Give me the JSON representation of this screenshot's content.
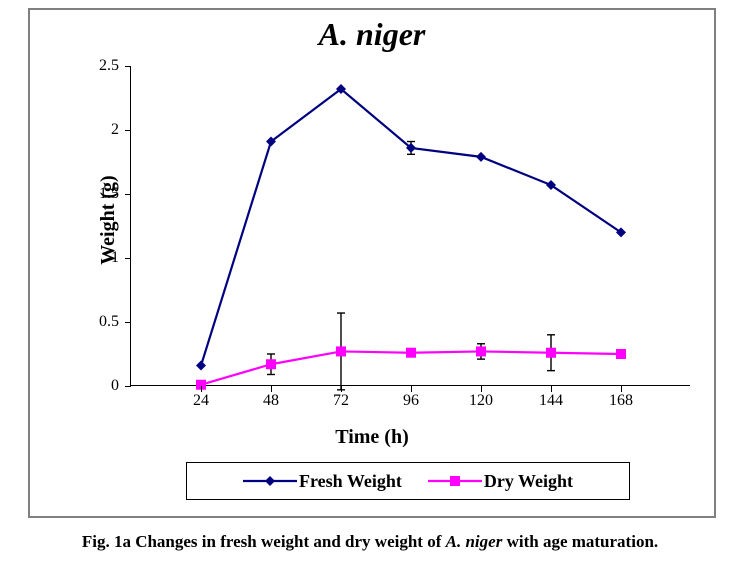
{
  "chart": {
    "type": "line",
    "title": "A. niger",
    "title_fontsize": 32,
    "title_fontstyle": "italic",
    "xlabel": "Time (h)",
    "ylabel": "Weight (g)",
    "label_fontsize": 20,
    "background_color": "#ffffff",
    "frame_border_color": "#808080",
    "axis_color": "#000000",
    "categories": [
      "24",
      "48",
      "72",
      "96",
      "120",
      "144",
      "168"
    ],
    "ylim": [
      0,
      2.5
    ],
    "ytick_step": 0.5,
    "yticks": [
      "0",
      "0.5",
      "1",
      "1.5",
      "2",
      "2.5"
    ],
    "series": [
      {
        "name": "Fresh Weight",
        "color": "#000080",
        "marker": "diamond",
        "marker_size": 10,
        "line_width": 2.2,
        "values": [
          0.16,
          1.91,
          2.32,
          1.86,
          1.79,
          1.57,
          1.2
        ],
        "errors": [
          0,
          0,
          0,
          0.05,
          0,
          0,
          0
        ]
      },
      {
        "name": "Dry Weight",
        "color": "#ff00ff",
        "marker": "square",
        "marker_size": 10,
        "line_width": 2.2,
        "values": [
          0.01,
          0.17,
          0.27,
          0.26,
          0.27,
          0.26,
          0.25
        ],
        "errors": [
          0,
          0.08,
          0.3,
          0,
          0.06,
          0.14,
          0.03
        ]
      }
    ],
    "legend_position": "bottom",
    "error_color": "#000000",
    "error_cap_width": 8
  },
  "caption_prefix": "Fig. 1a Changes in fresh weight and dry weight of ",
  "caption_species": "A. niger",
  "caption_suffix": " with age maturation."
}
